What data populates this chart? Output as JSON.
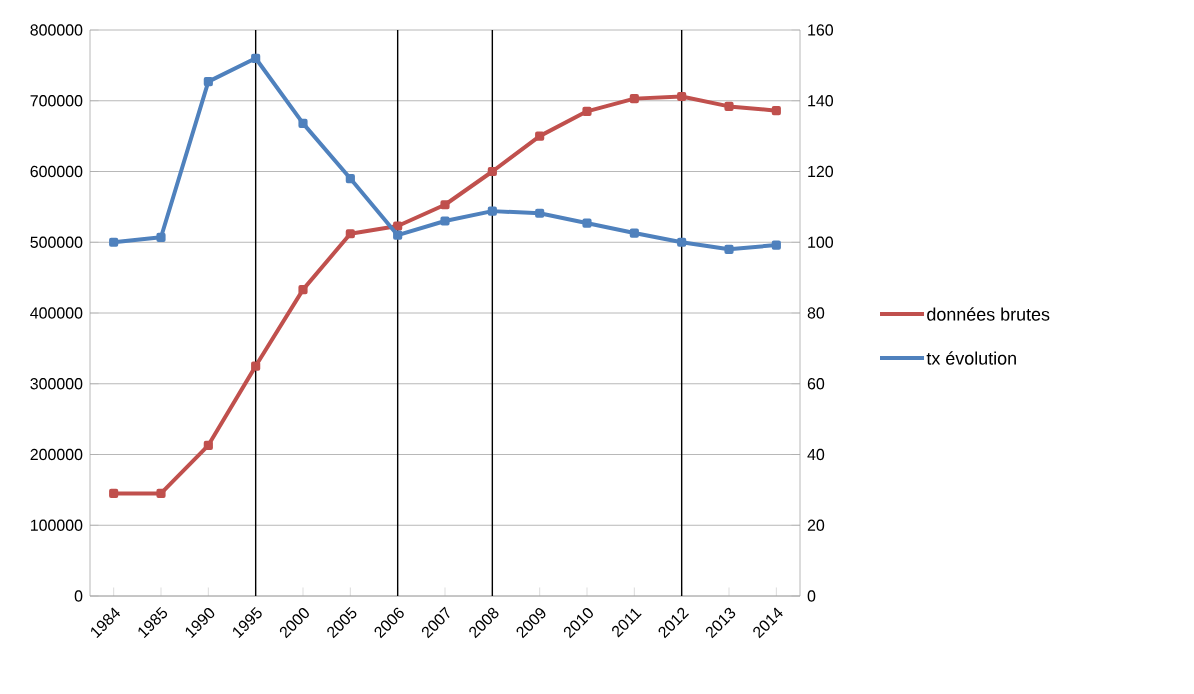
{
  "chart_data": {
    "type": "line",
    "categories": [
      "1984",
      "1985",
      "1990",
      "1995",
      "2000",
      "2005",
      "2006",
      "2007",
      "2008",
      "2009",
      "2010",
      "2011",
      "2012",
      "2013",
      "2014"
    ],
    "series": [
      {
        "name": "données brutes",
        "color": "#c0504d",
        "values": [
          145000,
          145000,
          213000,
          325000,
          433000,
          512000,
          523000,
          553000,
          600000,
          650000,
          685000,
          703000,
          706000,
          692000,
          686000
        ]
      },
      {
        "name": "tx évolution",
        "color": "#4f81bd",
        "axis": "y2",
        "values": [
          100,
          101.4,
          145.4,
          152,
          133.6,
          118,
          102,
          106,
          108.8,
          108.2,
          105.4,
          102.6,
          100,
          98,
          99.2
        ]
      }
    ],
    "ylim": [
      0,
      800000
    ],
    "yticks": [
      0,
      100000,
      200000,
      300000,
      400000,
      500000,
      600000,
      700000,
      800000
    ],
    "y2lim": [
      0,
      160
    ],
    "y2ticks": [
      0,
      20,
      40,
      60,
      80,
      100,
      120,
      140,
      160
    ],
    "ref_lines": [
      {
        "axis": "x",
        "value": "1995",
        "color": "#000000"
      },
      {
        "axis": "x",
        "value": "2006",
        "color": "#000000"
      },
      {
        "axis": "x",
        "value": "2008",
        "color": "#000000"
      },
      {
        "axis": "x",
        "value": "2012",
        "color": "#000000"
      }
    ],
    "grid": "y",
    "legend": "right",
    "line_style": "solid",
    "marker": "square"
  }
}
